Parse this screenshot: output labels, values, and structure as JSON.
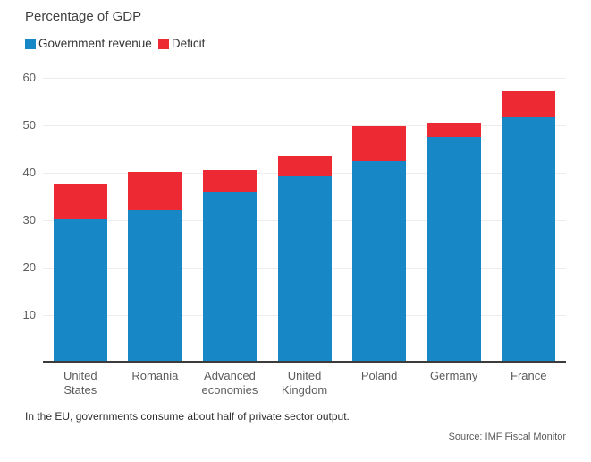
{
  "chart": {
    "title": "Percentage of GDP",
    "legend": [
      {
        "label": "Government revenue",
        "color": "#1787C6"
      },
      {
        "label": "Deficit",
        "color": "#ED2A33"
      }
    ],
    "note": "In the EU, governments consume about half of private sector output.",
    "source": "Source: IMF Fiscal Monitor"
  },
  "chart_data": {
    "type": "bar",
    "stacked": true,
    "title": "Percentage of GDP",
    "xlabel": "",
    "ylabel": "",
    "categories": [
      "United\nStates",
      "Romania",
      "Advanced\neconomies",
      "United\nKingdom",
      "Poland",
      "Germany",
      "France"
    ],
    "series": [
      {
        "name": "Government revenue",
        "color": "#1787C6",
        "values": [
          30.2,
          32.2,
          36.0,
          39.2,
          42.5,
          47.5,
          51.7
        ]
      },
      {
        "name": "Deficit",
        "color": "#ED2A33",
        "values": [
          7.5,
          8.0,
          4.6,
          4.3,
          7.4,
          3.0,
          5.5
        ]
      }
    ],
    "totals": [
      37.7,
      40.2,
      40.6,
      43.5,
      49.9,
      50.5,
      57.2
    ],
    "ylim": [
      0,
      60
    ],
    "yticks": [
      10,
      20,
      30,
      40,
      50,
      60
    ],
    "grid": true,
    "legend_position": "top-left",
    "colors": {
      "gridline": "#EDEDED",
      "axis_line": "#3B3B3B",
      "tick_text": "#5C5C5C"
    }
  }
}
